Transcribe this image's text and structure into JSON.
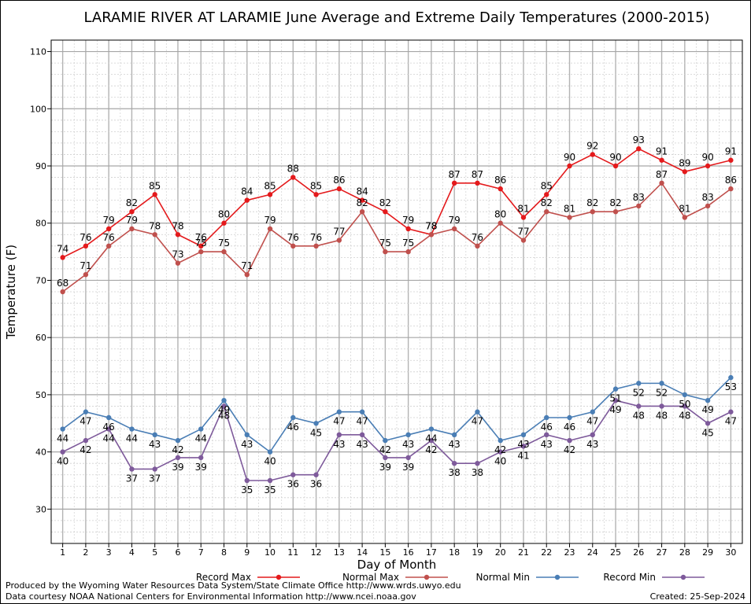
{
  "chart_data": {
    "type": "line",
    "title": "LARAMIE RIVER AT LARAMIE June Average and Extreme Daily Temperatures (2000-2015)",
    "xlabel": "Day of Month",
    "ylabel": "Temperature (F)",
    "x": [
      1,
      2,
      3,
      4,
      5,
      6,
      7,
      8,
      9,
      10,
      11,
      12,
      13,
      14,
      15,
      16,
      17,
      18,
      19,
      20,
      21,
      22,
      23,
      24,
      25,
      26,
      27,
      28,
      29,
      30
    ],
    "ylim": [
      24,
      112
    ],
    "yticks": [
      30,
      40,
      50,
      60,
      70,
      80,
      90,
      100,
      110
    ],
    "grid": true,
    "legend_position": "bottom",
    "series": [
      {
        "name": "Record Max",
        "color": "#e41a1c",
        "label_side": "above",
        "values": [
          74,
          76,
          79,
          82,
          85,
          78,
          76,
          80,
          84,
          85,
          88,
          85,
          86,
          84,
          82,
          79,
          78,
          87,
          87,
          86,
          81,
          85,
          90,
          92,
          90,
          93,
          91,
          89,
          90,
          91
        ]
      },
      {
        "name": "Normal Max",
        "color": "#c0504d",
        "label_side": "above",
        "values": [
          68,
          71,
          76,
          79,
          78,
          73,
          75,
          75,
          71,
          79,
          76,
          76,
          77,
          82,
          75,
          75,
          78,
          79,
          76,
          80,
          77,
          82,
          81,
          82,
          82,
          83,
          87,
          81,
          83,
          86
        ]
      },
      {
        "name": "Normal Min",
        "color": "#4a7eb5",
        "label_side": "below",
        "values": [
          44,
          47,
          46,
          44,
          43,
          42,
          44,
          49,
          43,
          40,
          46,
          45,
          47,
          47,
          42,
          43,
          44,
          43,
          47,
          42,
          43,
          46,
          46,
          47,
          51,
          52,
          52,
          50,
          49,
          53
        ]
      },
      {
        "name": "Record Min",
        "color": "#7e5a9b",
        "label_side": "below",
        "values": [
          40,
          42,
          44,
          37,
          37,
          39,
          39,
          48,
          35,
          35,
          36,
          36,
          43,
          43,
          39,
          39,
          42,
          38,
          38,
          40,
          41,
          43,
          42,
          43,
          49,
          48,
          48,
          48,
          45,
          47
        ]
      }
    ]
  },
  "footer": {
    "produced_by": "Produced by the Wyoming Water Resources Data System/State Climate Office http://www.wrds.uwyo.edu",
    "courtesy": "Data courtesy NOAA National Centers for Environmental Information http://www.ncei.noaa.gov",
    "created": "Created:  25-Sep-2024"
  }
}
